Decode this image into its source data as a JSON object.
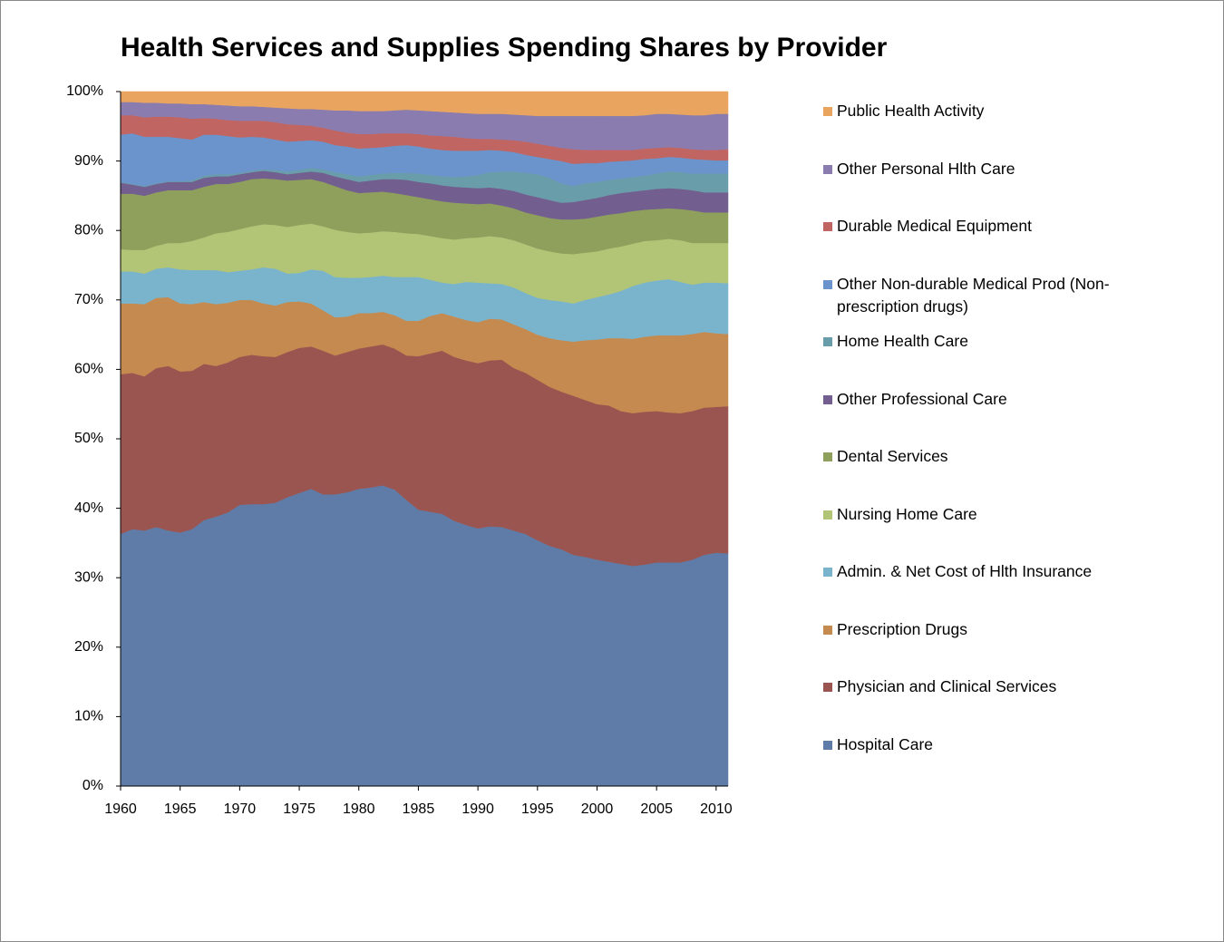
{
  "chart_data": {
    "type": "stacked_area",
    "title": "Health Services and Supplies Spending Shares by Provider",
    "legend": "right",
    "x": [
      1960,
      1961,
      1962,
      1963,
      1964,
      1965,
      1966,
      1967,
      1968,
      1969,
      1970,
      1971,
      1972,
      1973,
      1974,
      1975,
      1976,
      1977,
      1978,
      1979,
      1980,
      1981,
      1982,
      1983,
      1984,
      1985,
      1986,
      1987,
      1988,
      1989,
      1990,
      1991,
      1992,
      1993,
      1994,
      1995,
      1996,
      1997,
      1998,
      1999,
      2000,
      2001,
      2002,
      2003,
      2004,
      2005,
      2006,
      2007,
      2008,
      2009,
      2010,
      2011
    ],
    "xlim": [
      1960,
      2011
    ],
    "xticks": [
      1960,
      1965,
      1970,
      1975,
      1980,
      1985,
      1990,
      1995,
      2000,
      2005,
      2010
    ],
    "ylim": [
      0,
      100
    ],
    "yticks": [
      {
        "value": 0,
        "label": "0%"
      },
      {
        "value": 10,
        "label": "10%"
      },
      {
        "value": 20,
        "label": "20%"
      },
      {
        "value": 30,
        "label": "30%"
      },
      {
        "value": 40,
        "label": "40%"
      },
      {
        "value": 50,
        "label": "50%"
      },
      {
        "value": 60,
        "label": "60%"
      },
      {
        "value": 70,
        "label": "70%"
      },
      {
        "value": 80,
        "label": "80%"
      },
      {
        "value": 90,
        "label": "90%"
      },
      {
        "value": 100,
        "label": "100%"
      }
    ],
    "series": [
      {
        "name": "Hospital Care",
        "color": "#5f7ca8",
        "values": [
          36.3,
          37.0,
          36.8,
          37.3,
          36.8,
          36.5,
          37.0,
          38.3,
          38.8,
          39.4,
          40.5,
          40.6,
          40.6,
          40.8,
          41.6,
          42.2,
          42.8,
          42.0,
          42.0,
          42.3,
          42.8,
          43.0,
          43.3,
          42.7,
          41.2,
          39.8,
          39.5,
          39.2,
          38.2,
          37.6,
          37.1,
          37.4,
          37.3,
          36.8,
          36.3,
          35.4,
          34.6,
          34.1,
          33.3,
          33.0,
          32.6,
          32.3,
          32.0,
          31.7,
          31.9,
          32.2,
          32.2,
          32.2,
          32.6,
          33.3,
          33.6,
          33.5
        ]
      },
      {
        "name": "Physician and Clinical Services",
        "color": "#9b5550",
        "values": [
          23.0,
          22.5,
          22.2,
          22.9,
          23.7,
          23.2,
          22.8,
          22.5,
          21.7,
          21.6,
          21.3,
          21.5,
          21.3,
          21.0,
          20.9,
          20.9,
          20.5,
          20.7,
          20.0,
          20.2,
          20.2,
          20.3,
          20.3,
          20.3,
          20.8,
          22.1,
          22.8,
          23.5,
          23.6,
          23.7,
          23.8,
          23.9,
          24.1,
          23.4,
          23.2,
          23.1,
          22.9,
          22.7,
          22.9,
          22.6,
          22.4,
          22.5,
          22.0,
          22.0,
          22.0,
          21.8,
          21.6,
          21.5,
          21.4,
          21.2,
          21.0,
          21.2
        ]
      },
      {
        "name": "Prescription Drugs",
        "color": "#c48a4f",
        "values": [
          10.2,
          10.0,
          10.4,
          10.1,
          9.9,
          9.8,
          9.6,
          8.9,
          8.9,
          8.6,
          8.2,
          7.9,
          7.6,
          7.4,
          7.2,
          6.7,
          6.2,
          5.8,
          5.5,
          5.1,
          5.1,
          4.8,
          4.7,
          4.8,
          5.0,
          5.1,
          5.4,
          5.4,
          5.8,
          5.8,
          5.9,
          6.0,
          5.8,
          6.3,
          6.3,
          6.5,
          7.0,
          7.4,
          7.8,
          8.6,
          9.3,
          9.7,
          10.5,
          10.7,
          10.8,
          10.9,
          11.1,
          11.2,
          11.1,
          10.9,
          10.6,
          10.4
        ]
      },
      {
        "name": "Admin. & Net Cost of Hlth Insurance",
        "color": "#7ab4cc",
        "values": [
          4.6,
          4.6,
          4.4,
          4.2,
          4.3,
          4.9,
          4.9,
          4.6,
          4.9,
          4.4,
          4.2,
          4.4,
          5.2,
          5.3,
          4.1,
          4.1,
          4.9,
          5.7,
          5.8,
          5.6,
          5.1,
          5.2,
          5.2,
          5.5,
          6.3,
          6.3,
          5.2,
          4.4,
          4.7,
          5.5,
          5.7,
          5.1,
          5.1,
          5.3,
          5.2,
          5.3,
          5.5,
          5.6,
          5.5,
          5.8,
          6.1,
          6.3,
          6.8,
          7.6,
          7.8,
          7.9,
          8.1,
          7.7,
          7.1,
          7.1,
          7.3,
          7.3
        ]
      },
      {
        "name": "Nursing Home Care",
        "color": "#b2c476",
        "values": [
          3.2,
          3.1,
          3.4,
          3.3,
          3.5,
          3.8,
          4.2,
          4.7,
          5.3,
          5.8,
          6.0,
          6.2,
          6.2,
          6.3,
          6.7,
          6.9,
          6.6,
          6.4,
          6.8,
          6.6,
          6.4,
          6.4,
          6.4,
          6.5,
          6.3,
          6.2,
          6.3,
          6.4,
          6.4,
          6.3,
          6.5,
          6.8,
          6.7,
          6.8,
          7.0,
          7.1,
          7.0,
          6.9,
          7.1,
          6.8,
          6.6,
          6.6,
          6.4,
          6.1,
          6.0,
          5.8,
          5.8,
          6.0,
          6.0,
          5.7,
          5.7,
          5.8
        ]
      },
      {
        "name": "Dental Services",
        "color": "#8fa05d",
        "values": [
          8.0,
          8.1,
          7.8,
          7.7,
          7.6,
          7.6,
          7.3,
          7.3,
          7.1,
          6.9,
          6.8,
          6.8,
          6.6,
          6.6,
          6.7,
          6.5,
          6.4,
          6.4,
          6.3,
          6.0,
          5.8,
          5.8,
          5.7,
          5.6,
          5.5,
          5.3,
          5.3,
          5.3,
          5.3,
          5.0,
          4.8,
          4.7,
          4.6,
          4.6,
          4.6,
          4.8,
          4.8,
          4.9,
          5.0,
          4.9,
          5.0,
          4.9,
          4.8,
          4.7,
          4.5,
          4.5,
          4.4,
          4.5,
          4.7,
          4.4,
          4.4,
          4.4
        ]
      },
      {
        "name": "Other Professional Care",
        "color": "#725f8f",
        "values": [
          1.6,
          1.3,
          1.3,
          1.2,
          1.2,
          1.2,
          1.2,
          1.3,
          1.1,
          1.1,
          1.1,
          1.0,
          1.1,
          1.0,
          0.9,
          1.0,
          1.1,
          1.3,
          1.4,
          1.6,
          1.6,
          1.7,
          1.8,
          2.0,
          2.2,
          2.2,
          2.3,
          2.3,
          2.3,
          2.3,
          2.3,
          2.3,
          2.4,
          2.5,
          2.6,
          2.6,
          2.6,
          2.4,
          2.5,
          2.7,
          2.7,
          2.8,
          2.9,
          2.8,
          2.8,
          2.9,
          2.9,
          2.9,
          2.9,
          2.9,
          2.9,
          2.9
        ]
      },
      {
        "name": "Home Health Care",
        "color": "#6a9daa",
        "values": [
          0.1,
          0.1,
          0.1,
          0.1,
          0.1,
          0.1,
          0.2,
          0.3,
          0.3,
          0.3,
          0.2,
          0.2,
          0.2,
          0.3,
          0.4,
          0.4,
          0.5,
          0.5,
          0.6,
          0.7,
          0.8,
          0.8,
          0.8,
          0.9,
          1.0,
          1.2,
          1.2,
          1.3,
          1.4,
          1.6,
          1.9,
          2.2,
          2.5,
          2.8,
          3.1,
          3.3,
          3.2,
          2.8,
          2.3,
          2.4,
          2.3,
          2.2,
          2.1,
          2.1,
          2.1,
          2.2,
          2.4,
          2.4,
          2.4,
          2.7,
          2.7,
          2.7
        ]
      },
      {
        "name": "Other Non-durable Medical Prod (Non-prescription drugs)",
        "color": "#6b94cc",
        "values": [
          6.8,
          7.3,
          7.1,
          6.7,
          6.4,
          6.2,
          5.9,
          5.9,
          5.7,
          5.5,
          5.1,
          4.9,
          4.6,
          4.4,
          4.3,
          4.2,
          4.0,
          4.0,
          3.9,
          4.0,
          4.0,
          3.9,
          3.8,
          3.9,
          4.0,
          3.9,
          3.8,
          3.8,
          3.8,
          3.7,
          3.5,
          3.2,
          3.0,
          2.8,
          2.6,
          2.5,
          2.7,
          3.2,
          3.2,
          2.9,
          2.7,
          2.6,
          2.5,
          2.4,
          2.4,
          2.2,
          2.1,
          2.1,
          2.1,
          2.0,
          1.9,
          1.9
        ]
      },
      {
        "name": "Durable Medical Equipment",
        "color": "#c06562",
        "values": [
          2.8,
          2.6,
          2.8,
          2.9,
          2.9,
          3.0,
          3.0,
          2.4,
          2.3,
          2.3,
          2.4,
          2.3,
          2.4,
          2.5,
          2.5,
          2.3,
          2.1,
          2.0,
          2.1,
          2.0,
          2.1,
          2.0,
          2.0,
          1.8,
          1.7,
          1.8,
          1.9,
          2.0,
          2.0,
          1.8,
          1.7,
          1.6,
          1.6,
          1.7,
          1.9,
          1.9,
          1.9,
          1.9,
          2.1,
          1.9,
          1.9,
          1.7,
          1.6,
          1.5,
          1.5,
          1.5,
          1.4,
          1.4,
          1.4,
          1.4,
          1.5,
          1.6
        ]
      },
      {
        "name": "Other Personal Hlth Care",
        "color": "#8b7cb0",
        "values": [
          1.9,
          1.9,
          2.1,
          2.0,
          1.9,
          2.0,
          2.1,
          2.0,
          2.0,
          2.1,
          2.1,
          2.1,
          2.0,
          2.1,
          2.3,
          2.3,
          2.4,
          2.6,
          2.9,
          3.2,
          3.3,
          3.3,
          3.2,
          3.3,
          3.4,
          3.4,
          3.5,
          3.5,
          3.5,
          3.6,
          3.6,
          3.6,
          3.7,
          3.7,
          3.8,
          4.0,
          4.3,
          4.6,
          4.8,
          4.9,
          4.9,
          4.9,
          4.9,
          4.9,
          4.8,
          4.9,
          4.8,
          4.8,
          4.9,
          5.0,
          5.2,
          5.1
        ]
      },
      {
        "name": "Public Health Activity",
        "color": "#e9a55f",
        "values": [
          1.5,
          1.5,
          1.6,
          1.6,
          1.7,
          1.7,
          1.8,
          1.8,
          1.9,
          2.0,
          2.1,
          2.1,
          2.2,
          2.3,
          2.4,
          2.5,
          2.5,
          2.6,
          2.7,
          2.7,
          2.8,
          2.8,
          2.8,
          2.7,
          2.6,
          2.7,
          2.8,
          2.9,
          3.0,
          3.1,
          3.2,
          3.2,
          3.2,
          3.3,
          3.4,
          3.5,
          3.5,
          3.5,
          3.5,
          3.5,
          3.5,
          3.5,
          3.5,
          3.5,
          3.4,
          3.2,
          3.2,
          3.3,
          3.4,
          3.4,
          3.2,
          3.2
        ]
      }
    ]
  }
}
